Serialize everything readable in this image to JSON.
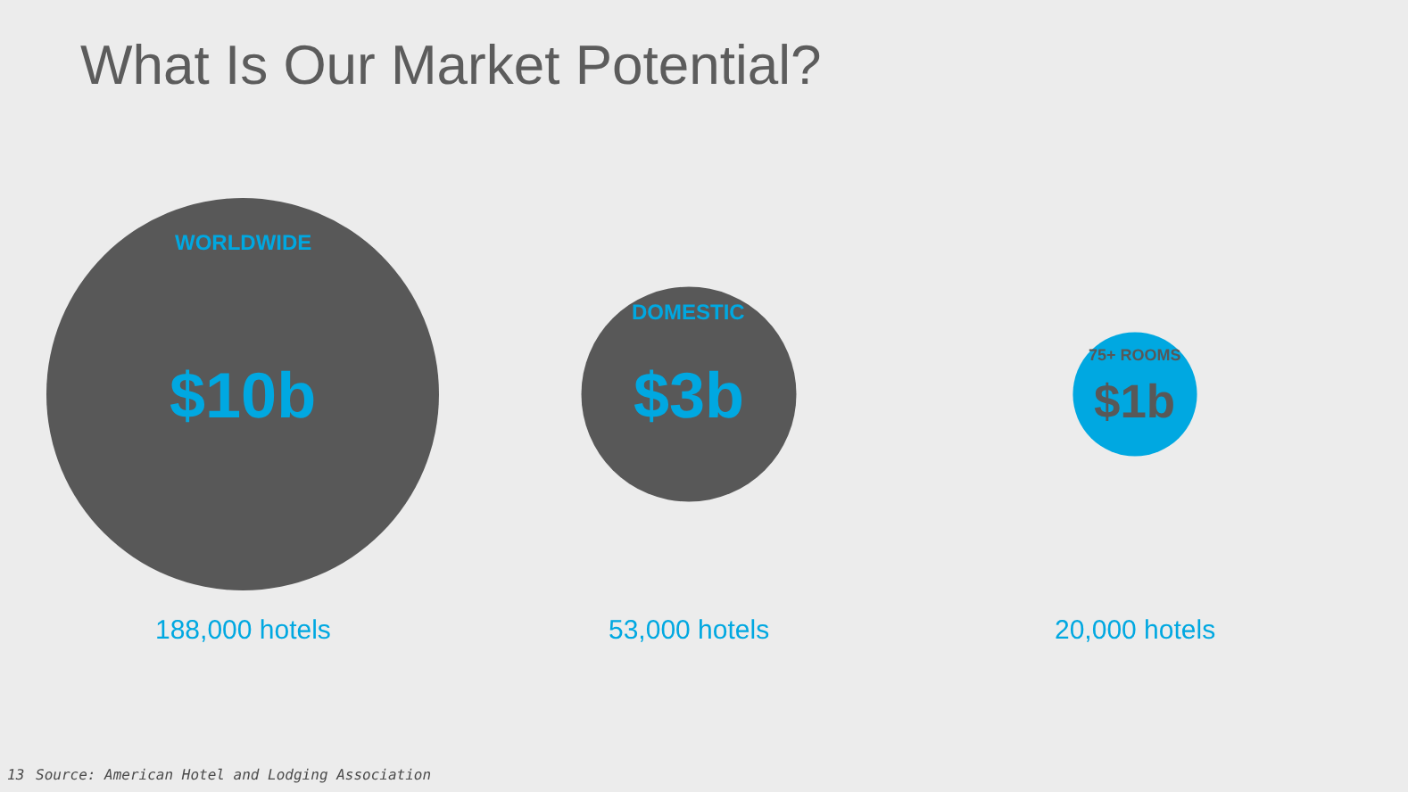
{
  "chart_data": {
    "type": "other",
    "title": "What Is Our Market Potential?",
    "categories": [
      "WORLDWIDE",
      "DOMESTIC",
      "75+ ROOMS"
    ],
    "values": [
      10,
      3,
      1
    ],
    "value_labels": [
      "$10b",
      "$3b",
      "$1b"
    ],
    "colors": [
      "#585858",
      "#585858",
      "#00a8e1"
    ],
    "annotations": [
      {
        "text": "188,000 hotels",
        "x": "WORLDWIDE"
      },
      {
        "text": "53,000 hotels",
        "x": "DOMESTIC"
      },
      {
        "text": "20,000 hotels",
        "x": "75+ ROOMS"
      },
      "13",
      "Source: American Hotel and Lodging Association"
    ]
  }
}
